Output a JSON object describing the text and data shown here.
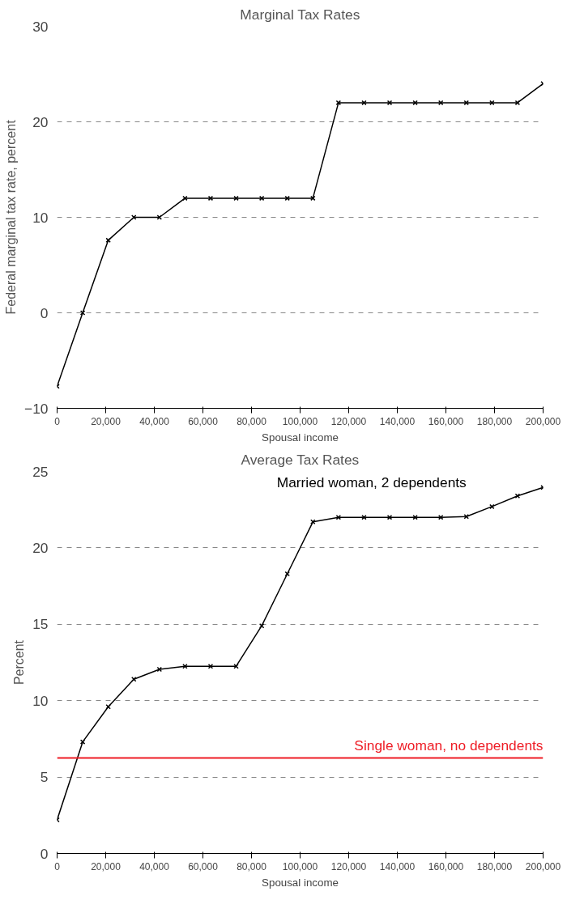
{
  "chart_data": [
    {
      "type": "line",
      "title": "Marginal Tax Rates",
      "xlabel": "Spousal income",
      "ylabel": "Federal marginal tax rate, percent",
      "x": [
        0,
        10526,
        21053,
        31579,
        42105,
        52632,
        63158,
        73684,
        84211,
        94737,
        105263,
        115789,
        126316,
        136842,
        147368,
        157895,
        168421,
        178947,
        189474,
        200000
      ],
      "series": [
        {
          "color": "#000000",
          "values": [
            -7.7,
            0,
            7.6,
            10,
            10,
            12,
            12,
            12,
            12,
            12,
            12,
            22,
            22,
            22,
            22,
            22,
            22,
            22,
            22,
            24
          ]
        }
      ],
      "xlim": [
        0,
        200000
      ],
      "ylim": [
        -10,
        30
      ],
      "yticks": [
        {
          "value": -10,
          "label": "−10"
        },
        0,
        10,
        20,
        30
      ],
      "xticks": [
        0,
        {
          "value": 20000,
          "label": "20,000"
        },
        {
          "value": 40000,
          "label": "40,000"
        },
        {
          "value": 60000,
          "label": "60,000"
        },
        {
          "value": 80000,
          "label": "80,000"
        },
        {
          "value": 100000,
          "label": "100,000"
        },
        {
          "value": 120000,
          "label": "120,000"
        },
        {
          "value": 140000,
          "label": "140,000"
        },
        {
          "value": 160000,
          "label": "160,000"
        },
        {
          "value": 180000,
          "label": "180,000"
        },
        {
          "value": 200000,
          "label": "200,000"
        }
      ],
      "grid": "y",
      "marker": "cross",
      "line_style": "solid"
    },
    {
      "type": "line",
      "title": "Average Tax Rates",
      "xlabel": "Spousal income",
      "ylabel": "Percent",
      "x": [
        0,
        10526,
        21053,
        31579,
        42105,
        52632,
        63158,
        73684,
        84211,
        94737,
        105263,
        115789,
        126316,
        136842,
        147368,
        157895,
        168421,
        178947,
        189474,
        200000
      ],
      "series": [
        {
          "name": "Married woman, 2 dependents",
          "color": "#000000",
          "values": [
            2.2,
            7.3,
            9.6,
            11.4,
            12.05,
            12.25,
            12.25,
            12.25,
            14.9,
            18.3,
            21.7,
            22,
            22,
            22,
            22,
            22,
            22.05,
            22.7,
            23.4,
            23.95
          ]
        }
      ],
      "ref_lines": [
        {
          "axis": "y",
          "value": 6.25,
          "label": "Single woman, no dependents",
          "color": "#ee1c25"
        }
      ],
      "xlim": [
        0,
        200000
      ],
      "ylim": [
        0,
        25
      ],
      "yticks": [
        0,
        5,
        10,
        15,
        20,
        25
      ],
      "xticks": [
        0,
        {
          "value": 20000,
          "label": "20,000"
        },
        {
          "value": 40000,
          "label": "40,000"
        },
        {
          "value": 60000,
          "label": "60,000"
        },
        {
          "value": 80000,
          "label": "80,000"
        },
        {
          "value": 100000,
          "label": "100,000"
        },
        {
          "value": 120000,
          "label": "120,000"
        },
        {
          "value": 140000,
          "label": "140,000"
        },
        {
          "value": 160000,
          "label": "160,000"
        },
        {
          "value": 180000,
          "label": "180,000"
        },
        {
          "value": 200000,
          "label": "200,000"
        }
      ],
      "grid": "y",
      "marker": "cross",
      "line_style": "solid"
    }
  ]
}
